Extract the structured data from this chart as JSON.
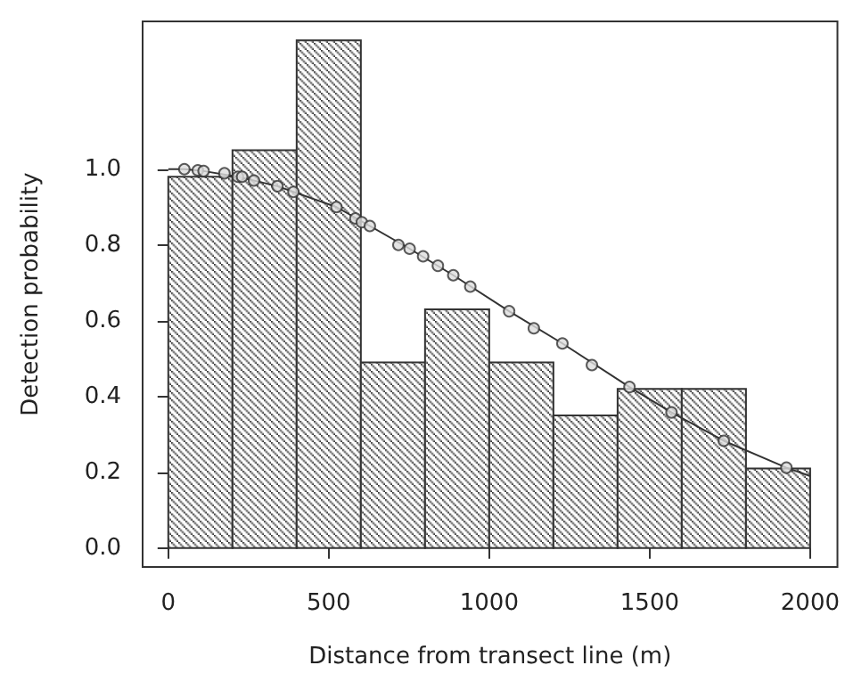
{
  "chart_data": {
    "type": "histogram",
    "xlabel": "Distance from transect line (m)",
    "ylabel": "Detection probability",
    "xlim": [
      -80,
      2085
    ],
    "xticks": [
      0,
      500,
      1000,
      1500,
      2000
    ],
    "ylim": [
      -0.05,
      1.39
    ],
    "yticks": [
      {
        "value": 0,
        "label": "0.0"
      },
      {
        "value": 0.2,
        "label": "0.2"
      },
      {
        "value": 0.4,
        "label": "0.4"
      },
      {
        "value": 0.6,
        "label": "0.6"
      },
      {
        "value": 0.8,
        "label": "0.8"
      },
      {
        "value": 1,
        "label": "1.0"
      }
    ],
    "grid": false,
    "series": [
      {
        "color": "#333333",
        "bins": [
          0,
          200,
          400,
          600,
          800,
          1000,
          1200,
          1400,
          1600,
          1800,
          2000
        ],
        "values": [
          0.98,
          1.05,
          1.34,
          0.49,
          0.63,
          0.49,
          0.35,
          0.42,
          0.42,
          0.21
        ]
      },
      {
        "type": "line",
        "color": "#333333",
        "marker": "none",
        "x": [
          0,
          50,
          110,
          217,
          340,
          524,
          628,
          752,
          888,
          1062,
          1228,
          1437,
          1568,
          1731,
          1926,
          2000
        ],
        "values": [
          1.0,
          1.0,
          0.995,
          0.98,
          0.955,
          0.9,
          0.85,
          0.79,
          0.72,
          0.625,
          0.54,
          0.425,
          0.358,
          0.283,
          0.212,
          0.19
        ]
      },
      {
        "type": "scatter",
        "color": "#333333",
        "marker": "circle",
        "x": [
          50,
          92,
          110,
          175,
          217,
          230,
          267,
          340,
          390,
          524,
          583,
          603,
          628,
          717,
          752,
          794,
          840,
          888,
          941,
          1062,
          1139,
          1228,
          1320,
          1437,
          1568,
          1731,
          1926
        ],
        "values": [
          1.0,
          0.997,
          0.995,
          0.989,
          0.98,
          0.98,
          0.97,
          0.955,
          0.94,
          0.9,
          0.87,
          0.86,
          0.85,
          0.8,
          0.79,
          0.77,
          0.745,
          0.72,
          0.69,
          0.625,
          0.58,
          0.54,
          0.483,
          0.425,
          0.358,
          0.283,
          0.212
        ]
      }
    ]
  }
}
